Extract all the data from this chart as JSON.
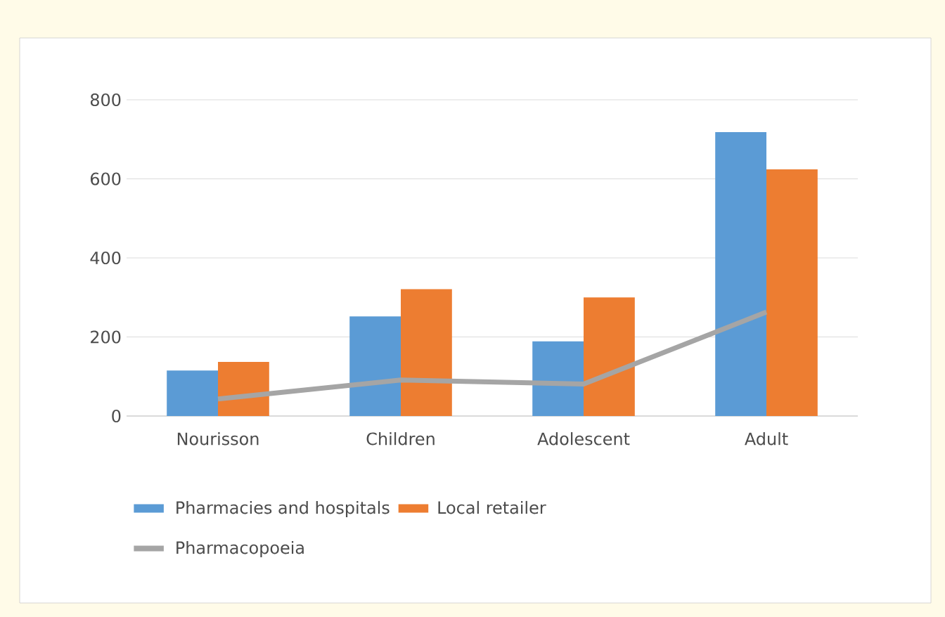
{
  "chart_data": {
    "type": "bar",
    "categories": [
      "Nourisson",
      "Children",
      "Adolescent",
      "Adult"
    ],
    "series": [
      {
        "name": "Pharmacies and hospitals",
        "color": "#5b9bd5",
        "values": [
          115,
          252,
          189,
          718
        ]
      },
      {
        "name": "Local retailer",
        "color": "#ed7d31",
        "values": [
          137,
          321,
          300,
          624
        ]
      },
      {
        "name": "Pharmacopoeia",
        "type": "line",
        "color": "#a5a5a5",
        "values": [
          43,
          91,
          81,
          263
        ]
      }
    ],
    "ylim": [
      0,
      800
    ],
    "yticks": [
      0,
      200,
      400,
      600,
      800
    ],
    "grid": "y",
    "legend": "bottom"
  }
}
